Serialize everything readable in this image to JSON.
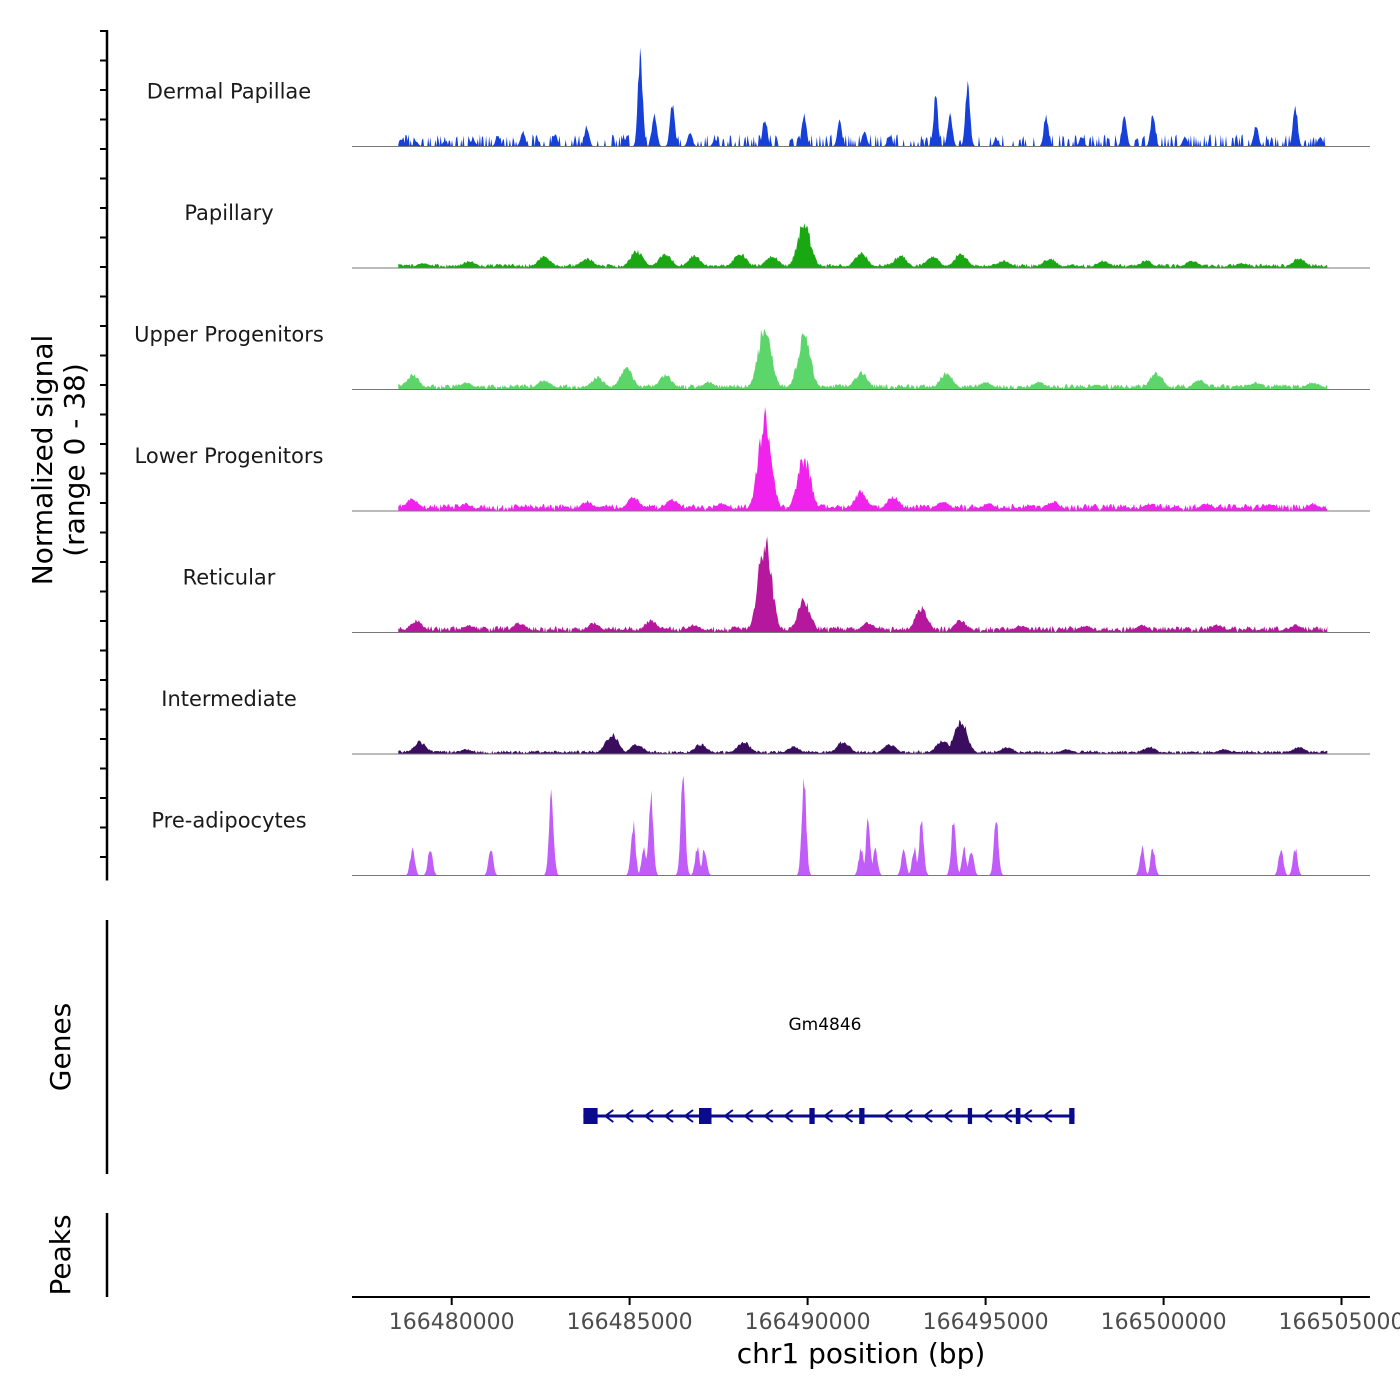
{
  "chart_data": {
    "type": "area",
    "chromosome": "chr1",
    "xlabel": "chr1 position (bp)",
    "ylabel_line1": "Normalized signal",
    "ylabel_line2": "(range 0 - 38)",
    "xlim": [
      166477200,
      166505800
    ],
    "ylim": [
      0,
      38
    ],
    "xticks": [
      166480000,
      166485000,
      166490000,
      166495000,
      166500000,
      166505000
    ],
    "xtick_labels": [
      "166480000",
      "166485000",
      "166490000",
      "166495000",
      "166500000",
      "166505000"
    ],
    "data_start": 166478500,
    "data_end": 166504600,
    "tracks": [
      {
        "name": "Dermal Papillae",
        "color": "#1640d8",
        "spiky": true,
        "base": 2.8,
        "peaks": [
          {
            "pos": 166478600,
            "h": 3
          },
          {
            "pos": 166479000,
            "h": 2
          },
          {
            "pos": 166479800,
            "h": 2
          },
          {
            "pos": 166480600,
            "h": 3
          },
          {
            "pos": 166481300,
            "h": 4
          },
          {
            "pos": 166482000,
            "h": 6
          },
          {
            "pos": 166482900,
            "h": 5
          },
          {
            "pos": 166483800,
            "h": 8
          },
          {
            "pos": 166485300,
            "h": 38
          },
          {
            "pos": 166485700,
            "h": 14
          },
          {
            "pos": 166486200,
            "h": 18
          },
          {
            "pos": 166486700,
            "h": 6
          },
          {
            "pos": 166487400,
            "h": 3
          },
          {
            "pos": 166488800,
            "h": 12
          },
          {
            "pos": 166489900,
            "h": 13
          },
          {
            "pos": 166490900,
            "h": 10
          },
          {
            "pos": 166491600,
            "h": 7
          },
          {
            "pos": 166492300,
            "h": 4
          },
          {
            "pos": 166493600,
            "h": 20
          },
          {
            "pos": 166494000,
            "h": 14
          },
          {
            "pos": 166494500,
            "h": 25
          },
          {
            "pos": 166495300,
            "h": 3
          },
          {
            "pos": 166496700,
            "h": 13
          },
          {
            "pos": 166497700,
            "h": 4
          },
          {
            "pos": 166498900,
            "h": 13
          },
          {
            "pos": 166499700,
            "h": 13
          },
          {
            "pos": 166500600,
            "h": 4
          },
          {
            "pos": 166502600,
            "h": 9
          },
          {
            "pos": 166503700,
            "h": 17
          },
          {
            "pos": 166504400,
            "h": 4
          }
        ]
      },
      {
        "name": "Papillary",
        "color": "#19a812",
        "spiky": false,
        "base": 1.2,
        "peaks": [
          {
            "pos": 166479200,
            "h": 2
          },
          {
            "pos": 166480500,
            "h": 3
          },
          {
            "pos": 166482600,
            "h": 5
          },
          {
            "pos": 166483800,
            "h": 4
          },
          {
            "pos": 166485200,
            "h": 7
          },
          {
            "pos": 166486000,
            "h": 6
          },
          {
            "pos": 166486800,
            "h": 5
          },
          {
            "pos": 166488100,
            "h": 6
          },
          {
            "pos": 166489000,
            "h": 5
          },
          {
            "pos": 166489900,
            "h": 18
          },
          {
            "pos": 166491500,
            "h": 6
          },
          {
            "pos": 166492600,
            "h": 5
          },
          {
            "pos": 166493500,
            "h": 5
          },
          {
            "pos": 166494300,
            "h": 6
          },
          {
            "pos": 166495500,
            "h": 3
          },
          {
            "pos": 166496800,
            "h": 4
          },
          {
            "pos": 166498300,
            "h": 3
          },
          {
            "pos": 166499500,
            "h": 3
          },
          {
            "pos": 166500800,
            "h": 3
          },
          {
            "pos": 166502200,
            "h": 2
          },
          {
            "pos": 166503800,
            "h": 4
          }
        ]
      },
      {
        "name": "Upper Progenitors",
        "color": "#5cd66a",
        "spiky": false,
        "base": 1.5,
        "peaks": [
          {
            "pos": 166478900,
            "h": 6
          },
          {
            "pos": 166480400,
            "h": 3
          },
          {
            "pos": 166482600,
            "h": 4
          },
          {
            "pos": 166484100,
            "h": 5
          },
          {
            "pos": 166484900,
            "h": 9
          },
          {
            "pos": 166486000,
            "h": 6
          },
          {
            "pos": 166487200,
            "h": 3
          },
          {
            "pos": 166488800,
            "h": 26
          },
          {
            "pos": 166489900,
            "h": 21
          },
          {
            "pos": 166491500,
            "h": 7
          },
          {
            "pos": 166493900,
            "h": 7
          },
          {
            "pos": 166495000,
            "h": 3
          },
          {
            "pos": 166496500,
            "h": 3
          },
          {
            "pos": 166498100,
            "h": 2
          },
          {
            "pos": 166499800,
            "h": 7
          },
          {
            "pos": 166501000,
            "h": 4
          },
          {
            "pos": 166502600,
            "h": 3
          },
          {
            "pos": 166504200,
            "h": 3
          }
        ]
      },
      {
        "name": "Lower Progenitors",
        "color": "#f023ec",
        "spiky": false,
        "base": 2,
        "peaks": [
          {
            "pos": 166478900,
            "h": 5
          },
          {
            "pos": 166480400,
            "h": 3
          },
          {
            "pos": 166482000,
            "h": 2
          },
          {
            "pos": 166483800,
            "h": 4
          },
          {
            "pos": 166485100,
            "h": 6
          },
          {
            "pos": 166486200,
            "h": 5
          },
          {
            "pos": 166487600,
            "h": 3
          },
          {
            "pos": 166488800,
            "h": 38
          },
          {
            "pos": 166489900,
            "h": 22
          },
          {
            "pos": 166491500,
            "h": 8
          },
          {
            "pos": 166492400,
            "h": 6
          },
          {
            "pos": 166493800,
            "h": 4
          },
          {
            "pos": 166495100,
            "h": 3
          },
          {
            "pos": 166496900,
            "h": 4
          },
          {
            "pos": 166499600,
            "h": 3
          },
          {
            "pos": 166501200,
            "h": 3
          },
          {
            "pos": 166503000,
            "h": 3
          },
          {
            "pos": 166504200,
            "h": 3
          }
        ]
      },
      {
        "name": "Reticular",
        "color": "#b5189d",
        "spiky": false,
        "base": 1.8,
        "peaks": [
          {
            "pos": 166479000,
            "h": 5
          },
          {
            "pos": 166480500,
            "h": 3
          },
          {
            "pos": 166481900,
            "h": 4
          },
          {
            "pos": 166484000,
            "h": 4
          },
          {
            "pos": 166485600,
            "h": 5
          },
          {
            "pos": 166486800,
            "h": 3
          },
          {
            "pos": 166488800,
            "h": 38
          },
          {
            "pos": 166489900,
            "h": 13
          },
          {
            "pos": 166491700,
            "h": 4
          },
          {
            "pos": 166493200,
            "h": 10
          },
          {
            "pos": 166494300,
            "h": 5
          },
          {
            "pos": 166496000,
            "h": 3
          },
          {
            "pos": 166497800,
            "h": 3
          },
          {
            "pos": 166499400,
            "h": 3
          },
          {
            "pos": 166501500,
            "h": 3
          },
          {
            "pos": 166503700,
            "h": 3
          }
        ]
      },
      {
        "name": "Intermediate",
        "color": "#3b0d5e",
        "spiky": false,
        "base": 1,
        "peaks": [
          {
            "pos": 166479100,
            "h": 5
          },
          {
            "pos": 166480400,
            "h": 2
          },
          {
            "pos": 166484500,
            "h": 8
          },
          {
            "pos": 166485200,
            "h": 4
          },
          {
            "pos": 166487000,
            "h": 4
          },
          {
            "pos": 166488200,
            "h": 5
          },
          {
            "pos": 166489600,
            "h": 3
          },
          {
            "pos": 166491000,
            "h": 5
          },
          {
            "pos": 166492300,
            "h": 4
          },
          {
            "pos": 166493800,
            "h": 6
          },
          {
            "pos": 166494300,
            "h": 14
          },
          {
            "pos": 166495600,
            "h": 3
          },
          {
            "pos": 166497300,
            "h": 2
          },
          {
            "pos": 166499600,
            "h": 3
          },
          {
            "pos": 166501700,
            "h": 2
          },
          {
            "pos": 166503800,
            "h": 3
          }
        ]
      },
      {
        "name": "Pre-adipocytes",
        "color": "#c05cf8",
        "spiky": true,
        "base": 0,
        "peaks": [
          {
            "pos": 166478900,
            "h": 11
          },
          {
            "pos": 166479400,
            "h": 11
          },
          {
            "pos": 166481100,
            "h": 11
          },
          {
            "pos": 166482800,
            "h": 34
          },
          {
            "pos": 166485100,
            "h": 21
          },
          {
            "pos": 166485400,
            "h": 11
          },
          {
            "pos": 166485600,
            "h": 32
          },
          {
            "pos": 166486500,
            "h": 38
          },
          {
            "pos": 166486900,
            "h": 11
          },
          {
            "pos": 166487100,
            "h": 11
          },
          {
            "pos": 166489900,
            "h": 38
          },
          {
            "pos": 166491500,
            "h": 11
          },
          {
            "pos": 166491700,
            "h": 22
          },
          {
            "pos": 166491900,
            "h": 11
          },
          {
            "pos": 166492700,
            "h": 11
          },
          {
            "pos": 166493000,
            "h": 11
          },
          {
            "pos": 166493200,
            "h": 22
          },
          {
            "pos": 166494100,
            "h": 22
          },
          {
            "pos": 166494400,
            "h": 11
          },
          {
            "pos": 166494600,
            "h": 11
          },
          {
            "pos": 166495300,
            "h": 22
          },
          {
            "pos": 166499400,
            "h": 11
          },
          {
            "pos": 166499700,
            "h": 11
          },
          {
            "pos": 166503300,
            "h": 11
          },
          {
            "pos": 166503700,
            "h": 11
          }
        ]
      }
    ],
    "gene_track": {
      "title": "Genes",
      "gene_name": "Gm4846",
      "color": "#0a0a8c",
      "strand": "-",
      "start": 166483700,
      "end": 166497500,
      "exons": [
        {
          "start": 166483700,
          "end": 166484100
        },
        {
          "start": 166486950,
          "end": 166487300
        },
        {
          "start": 166490050,
          "end": 166490200
        },
        {
          "start": 166491450,
          "end": 166491600
        },
        {
          "start": 166494500,
          "end": 166494620
        },
        {
          "start": 166495850,
          "end": 166495980
        },
        {
          "start": 166497350,
          "end": 166497500
        }
      ]
    },
    "peaks_track": {
      "title": "Peaks",
      "regions": []
    }
  }
}
